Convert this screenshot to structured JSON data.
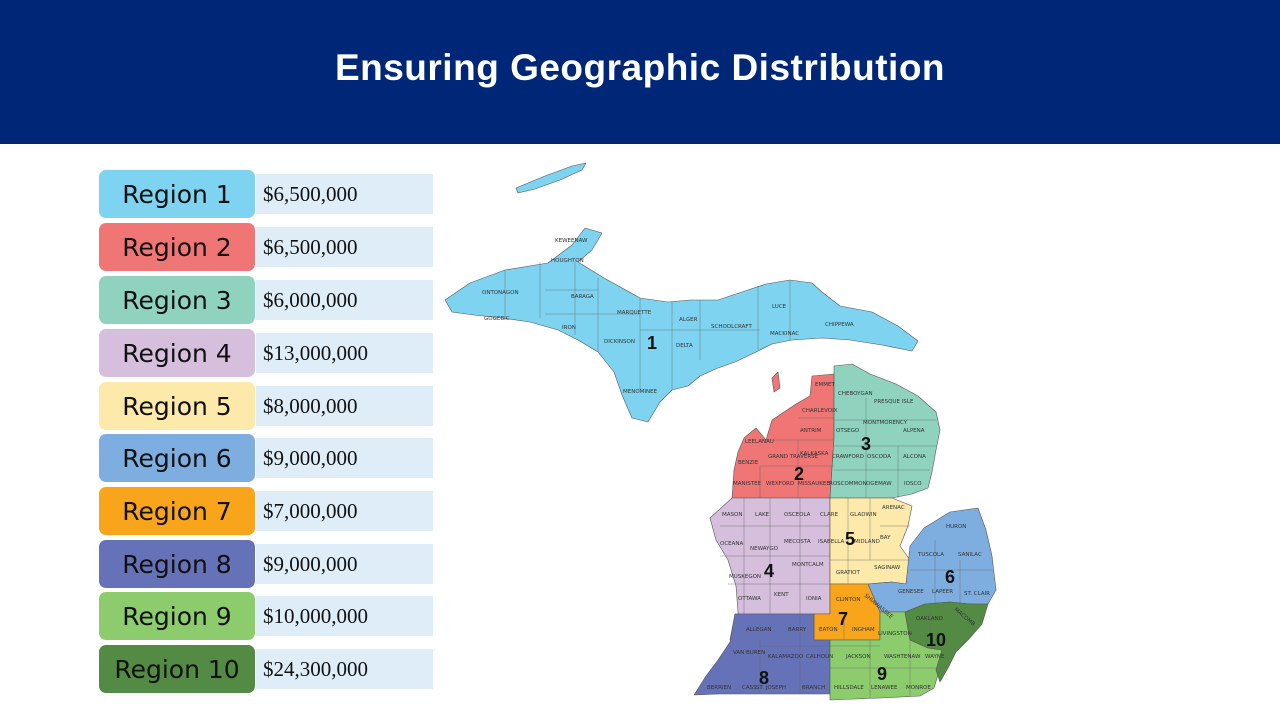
{
  "header": {
    "title": "Ensuring Geographic Distribution"
  },
  "regions": [
    {
      "label": "Region 1",
      "amount": "$6,500,000",
      "color": "#7dd3f0"
    },
    {
      "label": "Region 2",
      "amount": "$6,500,000",
      "color": "#f07676"
    },
    {
      "label": "Region 3",
      "amount": "$6,000,000",
      "color": "#8fd3bf"
    },
    {
      "label": "Region 4",
      "amount": "$13,000,000",
      "color": "#d5bfdd"
    },
    {
      "label": "Region 5",
      "amount": "$8,000,000",
      "color": "#fde9a9"
    },
    {
      "label": "Region 6",
      "amount": "$9,000,000",
      "color": "#7eaee0"
    },
    {
      "label": "Region 7",
      "amount": "$7,000,000",
      "color": "#f9a51c"
    },
    {
      "label": "Region 8",
      "amount": "$9,000,000",
      "color": "#6672b8"
    },
    {
      "label": "Region 9",
      "amount": "$10,000,000",
      "color": "#8ccc6c"
    },
    {
      "label": "Region 10",
      "amount": "$24,300,000",
      "color": "#548b44"
    }
  ],
  "map": {
    "region_numbers": [
      "1",
      "2",
      "3",
      "4",
      "5",
      "6",
      "7",
      "8",
      "9",
      "10"
    ],
    "counties": [
      "KEWEENAW",
      "HOUGHTON",
      "ONTONAGON",
      "BARAGA",
      "GOGEBIC",
      "IRON",
      "MARQUETTE",
      "DICKINSON",
      "ALGER",
      "DELTA",
      "SCHOOLCRAFT",
      "LUCE",
      "MACKINAC",
      "CHIPPEWA",
      "MENOMINEE",
      "EMMET",
      "CHARLEVOIX",
      "CHEBOYGAN",
      "PRESQUE ISLE",
      "ANTRIM",
      "LEELANAU",
      "MONTMORENCY",
      "ALPENA",
      "OTSEGO",
      "BENZIE",
      "GRAND TRAVERSE",
      "KALKASKA",
      "CRAWFORD",
      "OSCODA",
      "ALCONA",
      "MANISTEE",
      "WEXFORD",
      "MISSAUKEE",
      "ROSCOMMON",
      "OGEMAW",
      "IOSCO",
      "MASON",
      "LAKE",
      "OSCEOLA",
      "CLARE",
      "GLADWIN",
      "ARENAC",
      "HURON",
      "OCEANA",
      "NEWAYGO",
      "MECOSTA",
      "ISABELLA",
      "MIDLAND",
      "BAY",
      "TUSCOLA",
      "SANILAC",
      "MONTCALM",
      "GRATIOT",
      "SAGINAW",
      "MUSKEGON",
      "OTTAWA",
      "KENT",
      "IONIA",
      "CLINTON",
      "SHIAWASSEE",
      "GENESEE",
      "LAPEER",
      "ST. CLAIR",
      "ALLEGAN",
      "BARRY",
      "EATON",
      "INGHAM",
      "LIVINGSTON",
      "OAKLAND",
      "MACOMB",
      "VAN BUREN",
      "KALAMAZOO",
      "CALHOUN",
      "JACKSON",
      "WASHTENAW",
      "WAYNE",
      "BERRIEN",
      "CASS",
      "ST. JOSEPH",
      "BRANCH",
      "HILLSDALE",
      "LENAWEE",
      "MONROE"
    ]
  }
}
